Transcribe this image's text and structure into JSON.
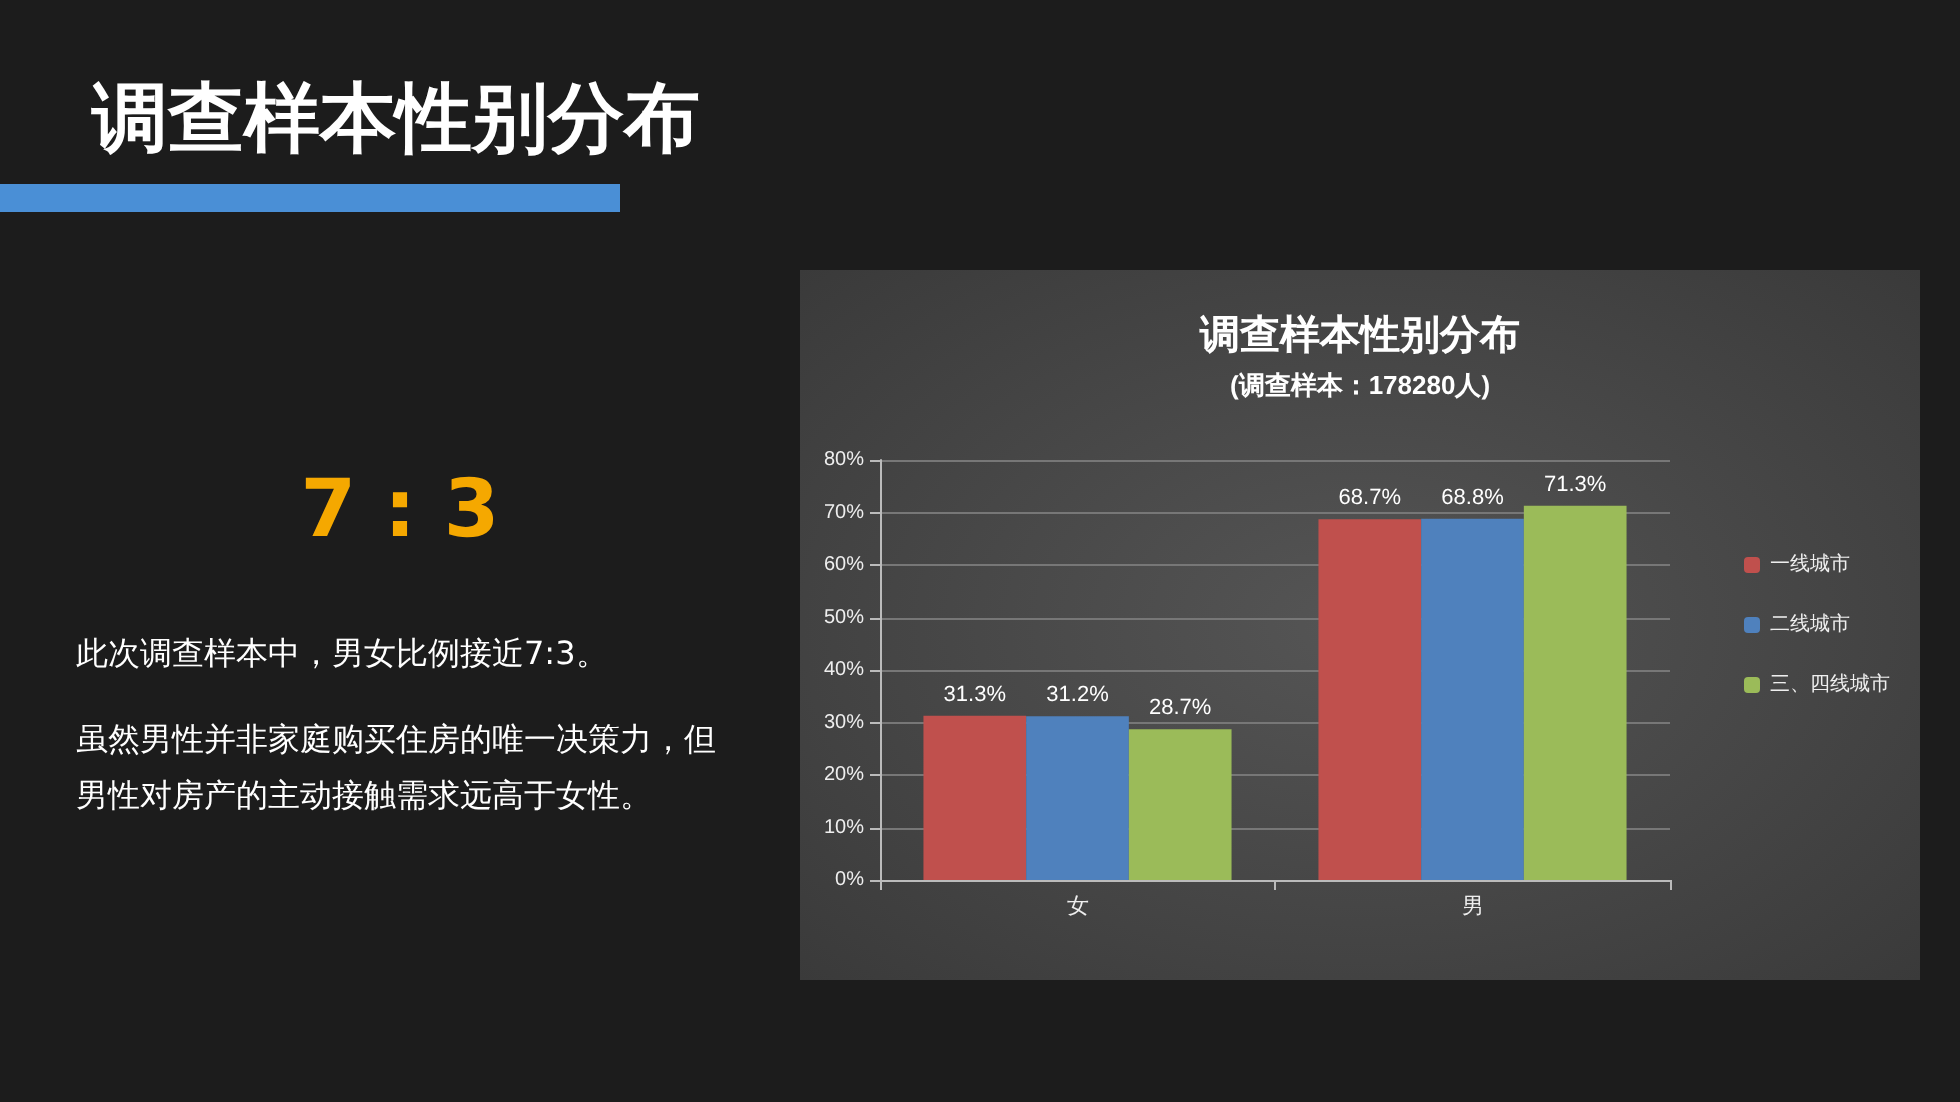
{
  "chart_data": {
    "type": "bar",
    "title": "调查样本性别分布",
    "subtitle": "(调查样本：178280人)",
    "annotations": [
      "调查样本性别分布",
      "7 : 3",
      "此次调查样本中，男女比例接近7:3。",
      "虽然男性并非家庭购买住房的唯一决策力，但男性对房产的主动接触需求远高于女性。"
    ],
    "categories": [
      "女",
      "男"
    ],
    "series": [
      {
        "name": "一线城市",
        "color": "#c0504d",
        "values": [
          31.3,
          68.7
        ],
        "value_labels": [
          "31.3%",
          "68.7%"
        ]
      },
      {
        "name": "二线城市",
        "color": "#4f81bd",
        "values": [
          31.2,
          68.8
        ],
        "value_labels": [
          "31.2%",
          "68.8%"
        ]
      },
      {
        "name": "三、四线城市",
        "color": "#9bbb59",
        "values": [
          28.7,
          71.3
        ],
        "value_labels": [
          "28.7%",
          "71.3%"
        ]
      }
    ],
    "ylim": [
      0,
      80
    ],
    "yticks": [
      {
        "value": 0,
        "label": "0%"
      },
      {
        "value": 10,
        "label": "10%"
      },
      {
        "value": 20,
        "label": "20%"
      },
      {
        "value": 30,
        "label": "30%"
      },
      {
        "value": 40,
        "label": "40%"
      },
      {
        "value": 50,
        "label": "50%"
      },
      {
        "value": 60,
        "label": "60%"
      },
      {
        "value": 70,
        "label": "70%"
      },
      {
        "value": 80,
        "label": "80%"
      }
    ],
    "grid": "y",
    "legend": "right"
  }
}
